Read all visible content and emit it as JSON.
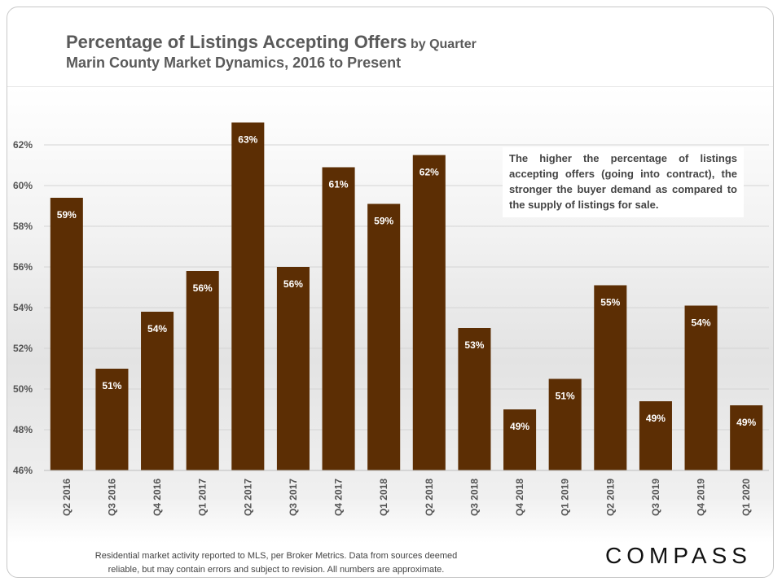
{
  "chart_data": {
    "type": "bar",
    "title": "Percentage of Listings Accepting Offers",
    "title_suffix": "by Quarter",
    "subtitle": "Marin County Market Dynamics, 2016 to Present",
    "categories": [
      "Q2 2016",
      "Q3 2016",
      "Q4 2016",
      "Q1 2017",
      "Q2 2017",
      "Q3 2017",
      "Q4 2017",
      "Q1 2018",
      "Q2 2018",
      "Q3 2018",
      "Q4 2018",
      "Q1 2019",
      "Q2 2019",
      "Q3 2019",
      "Q4 2019",
      "Q1 2020"
    ],
    "values": [
      59.4,
      51.0,
      53.8,
      55.8,
      63.1,
      56.0,
      60.9,
      59.1,
      61.5,
      53.0,
      49.0,
      50.5,
      55.1,
      49.4,
      54.1,
      49.2
    ],
    "data_labels": [
      "59%",
      "51%",
      "54%",
      "56%",
      "63%",
      "56%",
      "61%",
      "59%",
      "62%",
      "53%",
      "49%",
      "51%",
      "55%",
      "49%",
      "54%",
      "49%"
    ],
    "ylim": [
      46,
      64
    ],
    "yticks": [
      46,
      48,
      50,
      52,
      54,
      56,
      58,
      60,
      62
    ],
    "ytick_labels": [
      "46%",
      "48%",
      "50%",
      "52%",
      "54%",
      "56%",
      "58%",
      "60%",
      "62%"
    ],
    "xlabel": "",
    "ylabel": "",
    "grid": true,
    "bar_color": "#5c2e04"
  },
  "annotation": "The higher the percentage of listings accepting offers (going into contract), the stronger the buyer demand as compared to the supply of listings for sale.",
  "footer": {
    "line1": "Residential market activity reported to MLS, per Broker Metrics. Data from sources deemed",
    "line2": "reliable, but may contain errors and subject to revision. All numbers are approximate."
  },
  "logo": "COMPASS"
}
